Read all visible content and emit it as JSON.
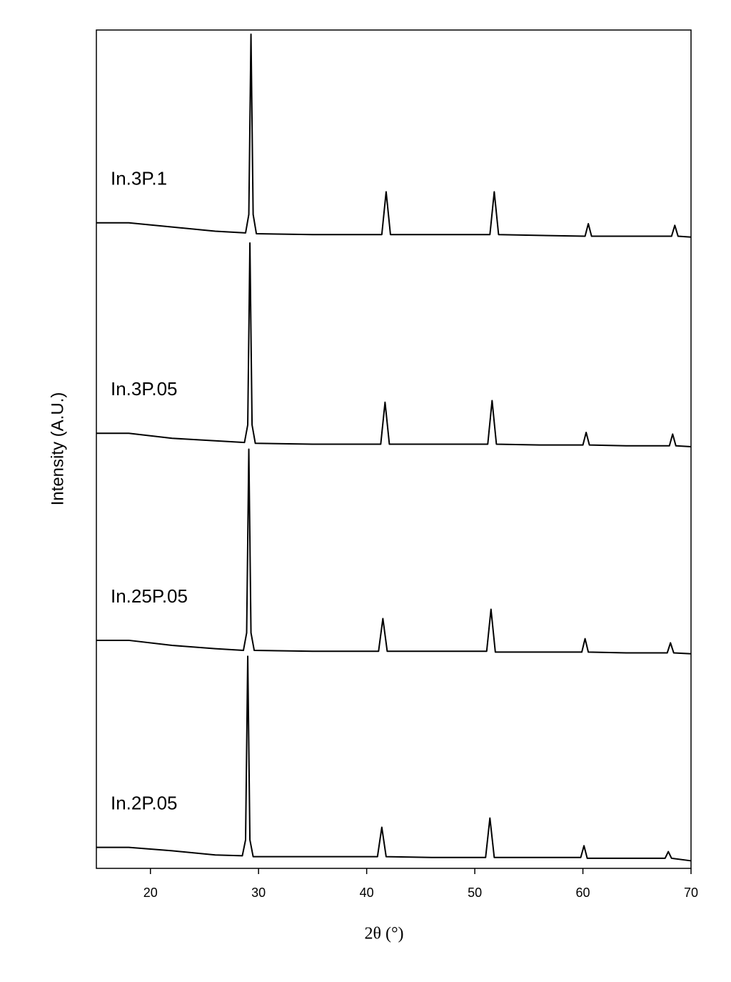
{
  "chart_data": {
    "type": "line",
    "x_label": "2θ (°)",
    "y_label": "Intensity (A.U.)",
    "xlim": [
      15,
      70
    ],
    "xticks": [
      20,
      30,
      40,
      50,
      60,
      70
    ],
    "ylim": [
      0,
      100
    ],
    "series": [
      {
        "name": "In.3P.1",
        "color": "#000000",
        "x": [
          15,
          18,
          22,
          26,
          28.8,
          29.1,
          29.3,
          29.5,
          29.8,
          35,
          41.4,
          41.8,
          42.2,
          46,
          51.4,
          51.8,
          52.2,
          56,
          60.2,
          60.5,
          60.8,
          64,
          68.2,
          68.5,
          68.8,
          70
        ],
        "values": [
          77.0,
          77.0,
          76.5,
          76.0,
          75.8,
          78.0,
          99.5,
          78.0,
          75.7,
          75.6,
          75.6,
          80.7,
          75.6,
          75.6,
          75.6,
          80.7,
          75.6,
          75.5,
          75.4,
          76.9,
          75.4,
          75.4,
          75.4,
          76.7,
          75.4,
          75.3
        ]
      },
      {
        "name": "In.3P.05",
        "color": "#000000",
        "x": [
          15,
          18,
          22,
          26,
          28.7,
          29.0,
          29.2,
          29.4,
          29.7,
          35,
          41.3,
          41.7,
          42.1,
          46,
          51.2,
          51.6,
          52.0,
          56,
          60.0,
          60.3,
          60.6,
          64,
          68.0,
          68.3,
          68.6,
          70
        ],
        "values": [
          51.9,
          51.9,
          51.3,
          51.0,
          50.8,
          52.9,
          74.6,
          52.9,
          50.7,
          50.6,
          50.6,
          55.6,
          50.6,
          50.6,
          50.6,
          55.8,
          50.6,
          50.5,
          50.5,
          52.0,
          50.5,
          50.4,
          50.4,
          51.8,
          50.4,
          50.3
        ]
      },
      {
        "name": "In.25P.05",
        "color": "#000000",
        "x": [
          15,
          18,
          22,
          26,
          28.6,
          28.9,
          29.1,
          29.3,
          29.6,
          35,
          41.1,
          41.5,
          41.9,
          46,
          51.1,
          51.5,
          51.9,
          56,
          59.9,
          60.2,
          60.5,
          64,
          67.8,
          68.1,
          68.4,
          70
        ],
        "values": [
          27.2,
          27.2,
          26.6,
          26.2,
          26.0,
          28.1,
          50.0,
          28.1,
          26.0,
          25.9,
          25.9,
          29.8,
          25.9,
          25.9,
          25.9,
          30.9,
          25.8,
          25.8,
          25.8,
          27.4,
          25.8,
          25.7,
          25.7,
          26.9,
          25.7,
          25.6
        ]
      },
      {
        "name": "In.2P.05",
        "color": "#000000",
        "x": [
          15,
          18,
          22,
          26,
          28.5,
          28.8,
          29.0,
          29.2,
          29.5,
          35,
          41.0,
          41.4,
          41.8,
          46,
          51.0,
          51.4,
          51.8,
          56,
          59.8,
          60.1,
          60.4,
          64,
          67.6,
          67.9,
          68.2,
          70
        ],
        "values": [
          2.5,
          2.5,
          2.1,
          1.6,
          1.5,
          3.4,
          25.3,
          3.4,
          1.4,
          1.4,
          1.4,
          4.9,
          1.4,
          1.3,
          1.3,
          6.0,
          1.3,
          1.3,
          1.3,
          2.7,
          1.2,
          1.2,
          1.2,
          2.0,
          1.2,
          0.9
        ]
      }
    ]
  }
}
